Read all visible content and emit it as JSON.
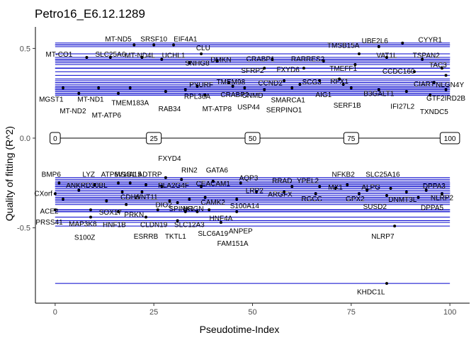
{
  "chart_data": {
    "type": "scatter",
    "title": "Petro16_E6.12.1289",
    "xlabel": "Pseudotime-Index",
    "ylabel": "Quality of fitting (R^2)",
    "xlim": [
      -5,
      105
    ],
    "ylim": [
      -0.92,
      0.62
    ],
    "x_ticks": [
      0,
      25,
      50,
      75,
      100
    ],
    "y_ticks": [
      0.5,
      0.0,
      -0.5
    ],
    "y_tick_labels": [
      "0.5",
      "0.0",
      "-0.5"
    ],
    "pseudotime_boxes": [
      "0",
      "25",
      "50",
      "75",
      "100"
    ],
    "colors": {
      "line": "#0000cc",
      "point": "#000000",
      "axis": "#000000"
    },
    "points": [
      {
        "gene": "CYYR1",
        "x": 88,
        "y": 0.53
      },
      {
        "gene": "UBE2L6",
        "x": 82,
        "y": 0.51
      },
      {
        "gene": "TMSB15A",
        "x": 77,
        "y": 0.47
      },
      {
        "gene": "VAT1L",
        "x": 84,
        "y": 0.45
      },
      {
        "gene": "TSPAN2",
        "x": 93,
        "y": 0.44
      },
      {
        "gene": "TAC3",
        "x": 98,
        "y": 0.39
      },
      {
        "gene": "CCDC160",
        "x": 91,
        "y": 0.37
      },
      {
        "gene": "NLGN4Y",
        "x": 99,
        "y": 0.35
      },
      {
        "gene": "CIART",
        "x": 96,
        "y": 0.31
      },
      {
        "gene": "GTF2IRD2B",
        "x": 99,
        "y": 0.27
      },
      {
        "gene": "TXNDC5",
        "x": 95,
        "y": 0.24
      },
      {
        "gene": "IFI27L2",
        "x": 89,
        "y": 0.26
      },
      {
        "gene": "B3GALT1",
        "x": 82,
        "y": 0.27
      },
      {
        "gene": "SERF1B",
        "x": 75,
        "y": 0.28
      },
      {
        "gene": "AIG1",
        "x": 73,
        "y": 0.3
      },
      {
        "gene": "RFX1",
        "x": 72,
        "y": 0.33
      },
      {
        "gene": "TMEFF1",
        "x": 76,
        "y": 0.41
      },
      {
        "gene": "RARRES2",
        "x": 68,
        "y": 0.43
      },
      {
        "gene": "CRABP1",
        "x": 55,
        "y": 0.44
      },
      {
        "gene": "FXYD6",
        "x": 63,
        "y": 0.39
      },
      {
        "gene": "SFRP2",
        "x": 53,
        "y": 0.39
      },
      {
        "gene": "CCND2",
        "x": 58,
        "y": 0.32
      },
      {
        "gene": "SCG3",
        "x": 67,
        "y": 0.32
      },
      {
        "gene": "SMARCA1",
        "x": 62,
        "y": 0.3
      },
      {
        "gene": "SERPINO1",
        "x": 60,
        "y": 0.28
      },
      {
        "gene": "CNMD",
        "x": 53,
        "y": 0.27
      },
      {
        "gene": "USP44",
        "x": 48,
        "y": 0.28
      },
      {
        "gene": "CRABP2",
        "x": 45,
        "y": 0.29
      },
      {
        "gene": "TMEM98",
        "x": 44,
        "y": 0.31
      },
      {
        "gene": "DMKN",
        "x": 41,
        "y": 0.43
      },
      {
        "gene": "CLU",
        "x": 37,
        "y": 0.47
      },
      {
        "gene": "PYURF",
        "x": 36,
        "y": 0.29
      },
      {
        "gene": "MT-ATP8",
        "x": 38,
        "y": 0.24
      },
      {
        "gene": "RPL36A",
        "x": 33,
        "y": 0.27
      },
      {
        "gene": "SNHG8",
        "x": 34,
        "y": 0.42
      },
      {
        "gene": "EIF4A1",
        "x": 30,
        "y": 0.52
      },
      {
        "gene": "SRSF10",
        "x": 25,
        "y": 0.52
      },
      {
        "gene": "UCHL1",
        "x": 27,
        "y": 0.44
      },
      {
        "gene": "MT-ND5",
        "x": 20,
        "y": 0.52
      },
      {
        "gene": "MT-ND4L",
        "x": 22,
        "y": 0.45
      },
      {
        "gene": "SLC25A6",
        "x": 14,
        "y": 0.45
      },
      {
        "gene": "MT-CO1",
        "x": 8,
        "y": 0.45
      },
      {
        "gene": "RAB34",
        "x": 28,
        "y": 0.26
      },
      {
        "gene": "TMEM183A",
        "x": 19,
        "y": 0.28
      },
      {
        "gene": "MT-ATP6",
        "x": 16,
        "y": 0.25
      },
      {
        "gene": "MT-ND1",
        "x": 11,
        "y": 0.28
      },
      {
        "gene": "MT-ND2",
        "x": 6,
        "y": 0.25
      },
      {
        "gene": "MGST1",
        "x": 2,
        "y": 0.28
      },
      {
        "gene": "KHDC1L",
        "x": 84,
        "y": -0.81
      },
      {
        "gene": "NLRP7",
        "x": 86,
        "y": -0.49
      },
      {
        "gene": "DPPA3",
        "x": 94,
        "y": -0.29
      },
      {
        "gene": "NLRP2",
        "x": 98,
        "y": -0.31
      },
      {
        "gene": "DPPA5",
        "x": 92,
        "y": -0.33
      },
      {
        "gene": "DNMT3L",
        "x": 89,
        "y": -0.3
      },
      {
        "gene": "SUSD2",
        "x": 84,
        "y": -0.32
      },
      {
        "gene": "SLC25A16",
        "x": 85,
        "y": -0.28
      },
      {
        "gene": "ALPG",
        "x": 79,
        "y": -0.29
      },
      {
        "gene": "NFKB2",
        "x": 74,
        "y": -0.26
      },
      {
        "gene": "GPX2",
        "x": 77,
        "y": -0.31
      },
      {
        "gene": "MX1",
        "x": 71,
        "y": -0.28
      },
      {
        "gene": "YPEL2",
        "x": 67,
        "y": -0.27
      },
      {
        "gene": "RRAD",
        "x": 60,
        "y": -0.27
      },
      {
        "gene": "RGCC",
        "x": 66,
        "y": -0.31
      },
      {
        "gene": "ARGFX",
        "x": 58,
        "y": -0.3
      },
      {
        "gene": "LRP2",
        "x": 51,
        "y": -0.3
      },
      {
        "gene": "AQP3",
        "x": 47,
        "y": -0.25
      },
      {
        "gene": "GATA6",
        "x": 40,
        "y": -0.24
      },
      {
        "gene": "CEACAM1",
        "x": 37,
        "y": -0.27
      },
      {
        "gene": "S100A14",
        "x": 46,
        "y": -0.34
      },
      {
        "gene": "HNF4A",
        "x": 39,
        "y": -0.4
      },
      {
        "gene": "ANPEP",
        "x": 46,
        "y": -0.41
      },
      {
        "gene": "SLC6A19",
        "x": 36,
        "y": -0.41
      },
      {
        "gene": "FAM151A",
        "x": 42,
        "y": -0.47
      },
      {
        "gene": "RIN2",
        "x": 32,
        "y": -0.23
      },
      {
        "gene": "FXYD4",
        "x": 28,
        "y": -0.22
      },
      {
        "gene": "PLA2G4F",
        "x": 27,
        "y": -0.27
      },
      {
        "gene": "ATP6V1B1",
        "x": 19,
        "y": -0.25
      },
      {
        "gene": "MS4A15",
        "x": 16,
        "y": -0.25
      },
      {
        "gene": "ADTRP",
        "x": 23,
        "y": -0.26
      },
      {
        "gene": "LYZ",
        "x": 10,
        "y": -0.26
      },
      {
        "gene": "BMP6",
        "x": 1,
        "y": -0.25
      },
      {
        "gene": "ANKRD30BL",
        "x": 6,
        "y": -0.29
      },
      {
        "gene": "CXorf",
        "x": 0,
        "y": -0.31
      },
      {
        "gene": "CDH6",
        "x": 17,
        "y": -0.3
      },
      {
        "gene": "WNT11",
        "x": 22,
        "y": -0.3
      },
      {
        "gene": "DIO2",
        "x": 29,
        "y": -0.35
      },
      {
        "gene": "SPINK1",
        "x": 31,
        "y": -0.36
      },
      {
        "gene": "NRGN",
        "x": 34,
        "y": -0.34
      },
      {
        "gene": "CAMK2",
        "x": 38,
        "y": -0.33
      },
      {
        "gene": "ACE2",
        "x": 2,
        "y": -0.34
      },
      {
        "gene": "SOX17",
        "x": 13,
        "y": -0.35
      },
      {
        "gene": "PRKN",
        "x": 18,
        "y": -0.37
      },
      {
        "gene": "PRSS41",
        "x": 0,
        "y": -0.4
      },
      {
        "gene": "MAP3K8",
        "x": 9,
        "y": -0.4
      },
      {
        "gene": "HNF1B",
        "x": 16,
        "y": -0.41
      },
      {
        "gene": "CLDN19",
        "x": 26,
        "y": -0.4
      },
      {
        "gene": "SLC12A3",
        "x": 33,
        "y": -0.41
      },
      {
        "gene": "S100Z",
        "x": 9,
        "y": -0.44
      },
      {
        "gene": "ESRRB",
        "x": 23,
        "y": -0.44
      },
      {
        "gene": "TKTL1",
        "x": 31,
        "y": -0.46
      }
    ],
    "labels": [
      {
        "text": "CYYR1",
        "x": 92,
        "y": 0.55,
        "anchor": "start"
      },
      {
        "text": "UBE2L6",
        "x": 81,
        "y": 0.545,
        "anchor": "middle"
      },
      {
        "text": "TMSB15A",
        "x": 73,
        "y": 0.52,
        "anchor": "middle"
      },
      {
        "text": "VAT1L",
        "x": 84,
        "y": 0.465,
        "anchor": "middle"
      },
      {
        "text": "TSPAN2",
        "x": 94,
        "y": 0.465,
        "anchor": "middle"
      },
      {
        "text": "TAC3",
        "x": 97,
        "y": 0.41,
        "anchor": "middle"
      },
      {
        "text": "CCDC160",
        "x": 87,
        "y": 0.375,
        "anchor": "middle"
      },
      {
        "text": "NLGN4Y",
        "x": 100,
        "y": 0.3,
        "anchor": "middle"
      },
      {
        "text": "CIART",
        "x": 93.5,
        "y": 0.305,
        "anchor": "middle"
      },
      {
        "text": "GTF2IRD2B",
        "x": 99,
        "y": 0.225,
        "anchor": "middle"
      },
      {
        "text": "TXNDC5",
        "x": 96,
        "y": 0.15,
        "anchor": "middle"
      },
      {
        "text": "IFI27L2",
        "x": 88,
        "y": 0.18,
        "anchor": "middle"
      },
      {
        "text": "B3GALT1",
        "x": 82,
        "y": 0.25,
        "anchor": "middle"
      },
      {
        "text": "SERF1B",
        "x": 74,
        "y": 0.185,
        "anchor": "middle"
      },
      {
        "text": "AIG1",
        "x": 68,
        "y": 0.245,
        "anchor": "middle"
      },
      {
        "text": "RFX1",
        "x": 72,
        "y": 0.32,
        "anchor": "middle"
      },
      {
        "text": "TMEFF1",
        "x": 73,
        "y": 0.39,
        "anchor": "middle"
      },
      {
        "text": "RARRES2",
        "x": 64,
        "y": 0.445,
        "anchor": "middle"
      },
      {
        "text": "CRABP1",
        "x": 52,
        "y": 0.445,
        "anchor": "middle"
      },
      {
        "text": "FXYD6",
        "x": 59,
        "y": 0.385,
        "anchor": "middle"
      },
      {
        "text": "SFRP2",
        "x": 50,
        "y": 0.38,
        "anchor": "middle"
      },
      {
        "text": "CCND2",
        "x": 54.5,
        "y": 0.31,
        "anchor": "middle"
      },
      {
        "text": "SCG3",
        "x": 65,
        "y": 0.315,
        "anchor": "middle"
      },
      {
        "text": "SMARCA1",
        "x": 59,
        "y": 0.215,
        "anchor": "middle"
      },
      {
        "text": "SERPINO1",
        "x": 58,
        "y": 0.16,
        "anchor": "middle"
      },
      {
        "text": "CNMD",
        "x": 50,
        "y": 0.24,
        "anchor": "middle"
      },
      {
        "text": "USP44",
        "x": 49,
        "y": 0.175,
        "anchor": "middle"
      },
      {
        "text": "CRABP2",
        "x": 45.5,
        "y": 0.245,
        "anchor": "middle"
      },
      {
        "text": "TMEM98",
        "x": 44.5,
        "y": 0.315,
        "anchor": "middle"
      },
      {
        "text": "DMKN",
        "x": 42,
        "y": 0.44,
        "anchor": "middle"
      },
      {
        "text": "CLU",
        "x": 37.5,
        "y": 0.505,
        "anchor": "middle"
      },
      {
        "text": "PYURF",
        "x": 37,
        "y": 0.3,
        "anchor": "middle"
      },
      {
        "text": "MT-ATP8",
        "x": 41,
        "y": 0.165,
        "anchor": "middle"
      },
      {
        "text": "RPL36A",
        "x": 36,
        "y": 0.235,
        "anchor": "middle"
      },
      {
        "text": "SNHG8",
        "x": 36,
        "y": 0.42,
        "anchor": "middle"
      },
      {
        "text": "EIF4A1",
        "x": 33,
        "y": 0.555,
        "anchor": "middle"
      },
      {
        "text": "SRSF10",
        "x": 25,
        "y": 0.555,
        "anchor": "middle"
      },
      {
        "text": "UCHL1",
        "x": 30,
        "y": 0.465,
        "anchor": "middle"
      },
      {
        "text": "MT-ND5",
        "x": 16,
        "y": 0.555,
        "anchor": "middle"
      },
      {
        "text": "MT-ND4L",
        "x": 21.5,
        "y": 0.465,
        "anchor": "middle"
      },
      {
        "text": "SLC25A6",
        "x": 14,
        "y": 0.47,
        "anchor": "middle"
      },
      {
        "text": "MT-CO1",
        "x": 1,
        "y": 0.47,
        "anchor": "middle"
      },
      {
        "text": "RAB34",
        "x": 29,
        "y": 0.165,
        "anchor": "middle"
      },
      {
        "text": "TMEM183A",
        "x": 19,
        "y": 0.2,
        "anchor": "middle"
      },
      {
        "text": "MT-ATP6",
        "x": 13,
        "y": 0.13,
        "anchor": "middle"
      },
      {
        "text": "MT-ND1",
        "x": 9,
        "y": 0.22,
        "anchor": "middle"
      },
      {
        "text": "MT-ND2",
        "x": 4.5,
        "y": 0.155,
        "anchor": "middle"
      },
      {
        "text": "MGST1",
        "x": -1,
        "y": 0.22,
        "anchor": "middle"
      },
      {
        "text": "KHDC1L",
        "x": 80,
        "y": -0.855,
        "anchor": "middle"
      },
      {
        "text": "NLRP7",
        "x": 83,
        "y": -0.545,
        "anchor": "middle"
      },
      {
        "text": "DPPA3",
        "x": 96,
        "y": -0.265,
        "anchor": "middle"
      },
      {
        "text": "NLRP2",
        "x": 98,
        "y": -0.33,
        "anchor": "middle"
      },
      {
        "text": "DPPA5",
        "x": 95.5,
        "y": -0.385,
        "anchor": "middle"
      },
      {
        "text": "DNMT3L",
        "x": 88,
        "y": -0.34,
        "anchor": "middle"
      },
      {
        "text": "SUSD2",
        "x": 81,
        "y": -0.38,
        "anchor": "middle"
      },
      {
        "text": "SLC25A16",
        "x": 83,
        "y": -0.2,
        "anchor": "middle"
      },
      {
        "text": "ALPG",
        "x": 80,
        "y": -0.27,
        "anchor": "middle"
      },
      {
        "text": "NFKB2",
        "x": 73,
        "y": -0.2,
        "anchor": "middle"
      },
      {
        "text": "GPX2",
        "x": 76,
        "y": -0.335,
        "anchor": "middle"
      },
      {
        "text": "MX1",
        "x": 71,
        "y": -0.27,
        "anchor": "middle"
      },
      {
        "text": "YPEL2",
        "x": 64,
        "y": -0.235,
        "anchor": "middle"
      },
      {
        "text": "RRAD",
        "x": 57.5,
        "y": -0.235,
        "anchor": "middle"
      },
      {
        "text": "RGCC",
        "x": 65,
        "y": -0.335,
        "anchor": "middle"
      },
      {
        "text": "ARGFX",
        "x": 57,
        "y": -0.31,
        "anchor": "middle"
      },
      {
        "text": "LRP2",
        "x": 50.5,
        "y": -0.29,
        "anchor": "middle"
      },
      {
        "text": "AQP3",
        "x": 49,
        "y": -0.22,
        "anchor": "middle"
      },
      {
        "text": "GATA6",
        "x": 41,
        "y": -0.175,
        "anchor": "middle"
      },
      {
        "text": "CEACAM1",
        "x": 40,
        "y": -0.25,
        "anchor": "middle"
      },
      {
        "text": "S100A14",
        "x": 48,
        "y": -0.375,
        "anchor": "middle"
      },
      {
        "text": "HNF4A",
        "x": 42,
        "y": -0.445,
        "anchor": "middle"
      },
      {
        "text": "ANPEP",
        "x": 47,
        "y": -0.515,
        "anchor": "middle"
      },
      {
        "text": "SLC6A19",
        "x": 40,
        "y": -0.53,
        "anchor": "middle"
      },
      {
        "text": "FAM151A",
        "x": 45,
        "y": -0.585,
        "anchor": "middle"
      },
      {
        "text": "RIN2",
        "x": 34,
        "y": -0.175,
        "anchor": "middle"
      },
      {
        "text": "FXYD4",
        "x": 29,
        "y": -0.11,
        "anchor": "middle"
      },
      {
        "text": "PLA2G4F",
        "x": 30,
        "y": -0.26,
        "anchor": "middle"
      },
      {
        "text": "ATP6V1B1",
        "x": 16,
        "y": -0.2,
        "anchor": "middle"
      },
      {
        "text": "MS4A15",
        "x": 15,
        "y": -0.2,
        "anchor": "start"
      },
      {
        "text": "ADTRP",
        "x": 24,
        "y": -0.2,
        "anchor": "middle"
      },
      {
        "text": "LYZ",
        "x": 8.5,
        "y": -0.2,
        "anchor": "middle"
      },
      {
        "text": "BMP6",
        "x": -1,
        "y": -0.2,
        "anchor": "middle"
      },
      {
        "text": "ANKRD30BL",
        "x": 8,
        "y": -0.26,
        "anchor": "middle"
      },
      {
        "text": "CXorf",
        "x": -3,
        "y": -0.305,
        "anchor": "middle"
      },
      {
        "text": "ACE2",
        "x": -1.5,
        "y": -0.405,
        "anchor": "middle"
      },
      {
        "text": "SOX17",
        "x": 14,
        "y": -0.41,
        "anchor": "middle"
      },
      {
        "text": "PRKN",
        "x": 20,
        "y": -0.425,
        "anchor": "middle"
      },
      {
        "text": "PRSS41",
        "x": -1.5,
        "y": -0.465,
        "anchor": "middle"
      },
      {
        "text": "MAP3K8",
        "x": 7,
        "y": -0.475,
        "anchor": "middle"
      },
      {
        "text": "HNF1B",
        "x": 15,
        "y": -0.48,
        "anchor": "middle"
      },
      {
        "text": "CLDN19",
        "x": 25,
        "y": -0.48,
        "anchor": "middle"
      },
      {
        "text": "SLC12A3",
        "x": 34,
        "y": -0.48,
        "anchor": "middle"
      },
      {
        "text": "S100Z",
        "x": 7.5,
        "y": -0.55,
        "anchor": "middle"
      },
      {
        "text": "ESRRB",
        "x": 23,
        "y": -0.545,
        "anchor": "middle"
      },
      {
        "text": "TKTL1",
        "x": 30.5,
        "y": -0.545,
        "anchor": "middle"
      },
      {
        "text": "SPINK1",
        "x": 32,
        "y": -0.39,
        "anchor": "middle"
      },
      {
        "text": "NRGN",
        "x": 35,
        "y": -0.39,
        "anchor": "middle"
      },
      {
        "text": "DIO2",
        "x": 27.5,
        "y": -0.37,
        "anchor": "middle"
      },
      {
        "text": "CAMK2",
        "x": 40,
        "y": -0.355,
        "anchor": "middle"
      },
      {
        "text": "CDH6",
        "x": 19,
        "y": -0.325,
        "anchor": "middle"
      },
      {
        "text": "WNT11",
        "x": 23,
        "y": -0.325,
        "anchor": "middle"
      }
    ]
  }
}
